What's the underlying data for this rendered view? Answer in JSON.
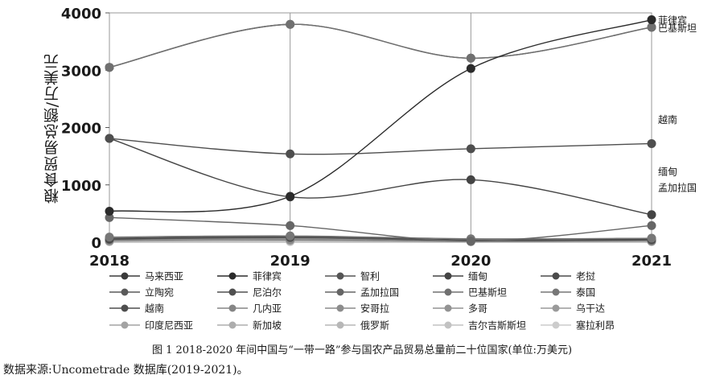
{
  "chart_data": {
    "type": "line",
    "ylabel": "粮食贸易总额/万美元",
    "x": [
      "2018",
      "2019",
      "2020",
      "2021"
    ],
    "ylim": [
      0,
      4000
    ],
    "yticks": [
      0,
      1000,
      2000,
      3000,
      4000
    ],
    "grid": "vertical",
    "legend_position": "bottom",
    "series": [
      {
        "name": "马来西亚",
        "values": [
          3050,
          3800,
          3210,
          3750
        ]
      },
      {
        "name": "菲律宾",
        "values": [
          540,
          800,
          3030,
          3880
        ]
      },
      {
        "name": "智利",
        "values": [
          70,
          90,
          30,
          60
        ]
      },
      {
        "name": "缅甸",
        "values": [
          1810,
          790,
          1090,
          480
        ]
      },
      {
        "name": "老挝",
        "values": [
          60,
          100,
          40,
          50
        ]
      },
      {
        "name": "立陶宛",
        "values": [
          50,
          80,
          30,
          40
        ]
      },
      {
        "name": "尼泊尔",
        "values": [
          40,
          60,
          20,
          30
        ]
      },
      {
        "name": "孟加拉国",
        "values": [
          430,
          290,
          20,
          290
        ]
      },
      {
        "name": "巴基斯坦",
        "values": [
          3050,
          3800,
          3210,
          3750
        ]
      },
      {
        "name": "泰国",
        "values": [
          90,
          110,
          60,
          70
        ]
      },
      {
        "name": "越南",
        "values": [
          1810,
          1540,
          1630,
          1720
        ]
      },
      {
        "name": "几内亚",
        "values": [
          50,
          40,
          20,
          30
        ]
      },
      {
        "name": "安哥拉",
        "values": [
          40,
          60,
          20,
          30
        ]
      },
      {
        "name": "多哥",
        "values": [
          30,
          50,
          20,
          20
        ]
      },
      {
        "name": "乌干达",
        "values": [
          20,
          40,
          10,
          20
        ]
      },
      {
        "name": "印度尼西亚",
        "values": [
          30,
          40,
          20,
          30
        ]
      },
      {
        "name": "新加坡",
        "values": [
          20,
          30,
          10,
          20
        ]
      },
      {
        "name": "俄罗斯",
        "values": [
          20,
          30,
          10,
          20
        ]
      },
      {
        "name": "吉尔吉斯斯坦",
        "values": [
          10,
          20,
          10,
          10
        ]
      },
      {
        "name": "塞拉利昂",
        "values": [
          10,
          10,
          10,
          10
        ]
      }
    ],
    "series_colors": [
      "#3a3a3a",
      "#2b2b2b",
      "#555555",
      "#444444",
      "#4a4a4a",
      "#5a5a5a",
      "#505050",
      "#666666",
      "#707070",
      "#777777",
      "#4e4e4e",
      "#858585",
      "#8c8c8c",
      "#939393",
      "#9a9a9a",
      "#a3a3a3",
      "#adadad",
      "#b7b7b7",
      "#c2c2c2",
      "#cccccc"
    ],
    "end_labels": [
      {
        "text": "菲律宾",
        "value": 3880
      },
      {
        "text": "巴基斯坦",
        "value": 3750
      },
      {
        "text": "越南",
        "value": 2150
      },
      {
        "text": "缅甸",
        "value": 1240
      },
      {
        "text": "孟加拉国",
        "value": 960
      }
    ]
  },
  "caption": "图 1    2018-2020 年间中国与“一带一路”参与国农产品贸易总量前二十位国家(单位:万美元)",
  "source": "数据来源:Uncometrade 数据库(2019-2021)。"
}
